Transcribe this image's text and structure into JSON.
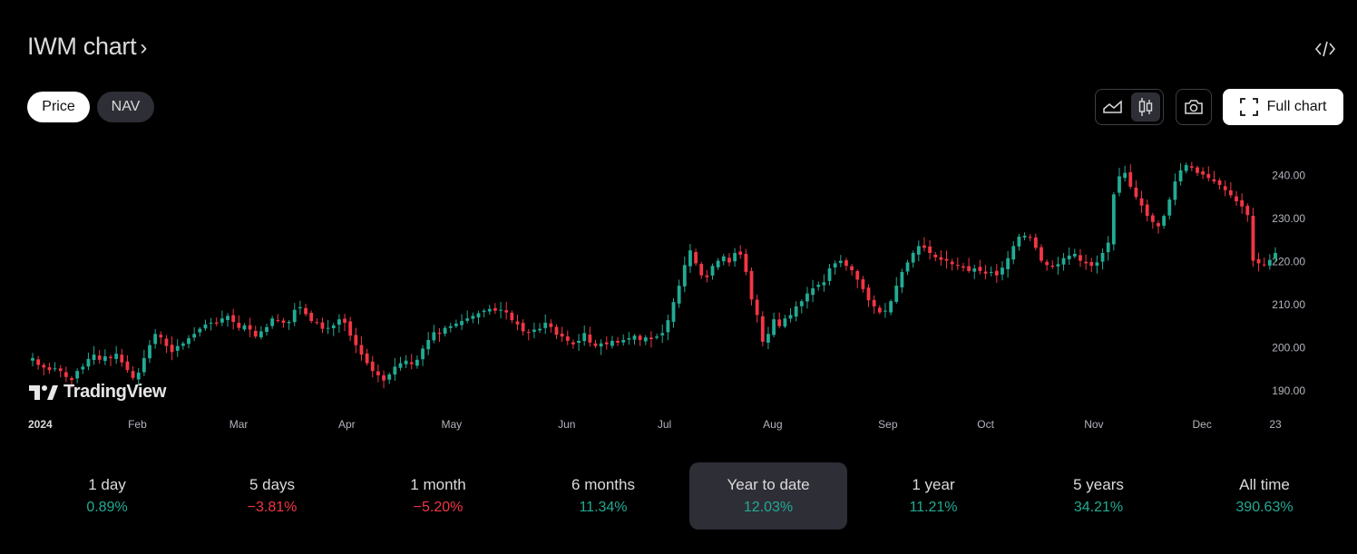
{
  "header": {
    "title": "IWM chart",
    "chevron": "›",
    "embed_icon": "code-icon"
  },
  "toggle": {
    "price_label": "Price",
    "nav_label": "NAV",
    "active": "Price"
  },
  "toolbar": {
    "area_icon": "area-chart-icon",
    "candle_icon": "candlestick-icon",
    "active_type": "candles",
    "camera_icon": "camera-icon",
    "full_chart_label": "Full chart",
    "full_chart_icon": "fullscreen-icon"
  },
  "watermark": {
    "text": "TradingView"
  },
  "colors": {
    "up": "#22ab94",
    "down": "#f23645",
    "background": "#000000",
    "axis_text": "#b2b5be"
  },
  "chart_data": {
    "type": "candlestick",
    "title": "",
    "ylim": [
      186,
      246
    ],
    "y_ticks": [
      190,
      200,
      210,
      220,
      230,
      240
    ],
    "y_tick_labels": [
      "190.00",
      "200.00",
      "210.00",
      "220.00",
      "230.00",
      "240.00"
    ],
    "x_tick_labels": [
      "2024",
      "Feb",
      "Mar",
      "Apr",
      "May",
      "Jun",
      "Jul",
      "Aug",
      "Sep",
      "Oct",
      "Nov",
      "Dec",
      "23"
    ],
    "x_tick_dates": [
      "2024-01-02",
      "2024-02-01",
      "2024-03-01",
      "2024-04-01",
      "2024-05-01",
      "2024-06-03",
      "2024-07-01",
      "2024-08-01",
      "2024-09-03",
      "2024-10-01",
      "2024-11-01",
      "2024-12-02",
      "2024-12-23"
    ],
    "date_range": [
      "2024-01-02",
      "2024-12-23"
    ],
    "series": [
      {
        "values": [
          197.6,
          196.0,
          195.4,
          194.8,
          195.2,
          194.6,
          193.2,
          192.5,
          194.6,
          195.6,
          197.4,
          198.4,
          197.2,
          198.0,
          197.6,
          198.6,
          196.6,
          194.8,
          193.0,
          194.2,
          197.6,
          200.6,
          203.2,
          202.4,
          200.4,
          199.0,
          200.4,
          201.0,
          202.2,
          203.2,
          204.4,
          205.4,
          205.8,
          205.6,
          206.8,
          207.4,
          206.0,
          204.6,
          205.2,
          204.2,
          202.6,
          203.8,
          204.8,
          206.8,
          206.4,
          205.8,
          206.0,
          208.8,
          209.4,
          207.8,
          206.2,
          205.8,
          204.4,
          204.6,
          205.2,
          206.6,
          205.8,
          202.8,
          200.6,
          198.4,
          196.4,
          194.6,
          193.6,
          192.4,
          193.8,
          195.6,
          196.4,
          197.0,
          196.2,
          197.2,
          199.8,
          201.8,
          203.6,
          203.2,
          204.6,
          205.0,
          205.6,
          206.2,
          206.8,
          207.4,
          208.0,
          208.6,
          209.0,
          208.6,
          208.8,
          208.2,
          206.4,
          205.4,
          203.8,
          203.6,
          204.2,
          204.4,
          205.8,
          204.8,
          203.0,
          202.6,
          201.6,
          200.8,
          201.6,
          203.4,
          201.2,
          200.4,
          201.0,
          200.8,
          201.6,
          201.2,
          201.8,
          202.2,
          202.8,
          201.8,
          202.4,
          202.0,
          202.6,
          203.4,
          206.4,
          210.6,
          214.4,
          219.2,
          222.6,
          219.6,
          216.8,
          216.4,
          219.0,
          220.2,
          221.2,
          219.8,
          222.0,
          221.6,
          217.6,
          211.2,
          207.6,
          201.4,
          203.2,
          206.6,
          205.0,
          206.8,
          207.6,
          209.6,
          210.8,
          212.6,
          213.8,
          214.6,
          215.2,
          218.4,
          219.6,
          220.2,
          219.0,
          218.0,
          215.8,
          213.6,
          211.0,
          209.6,
          208.2,
          208.6,
          210.8,
          214.4,
          217.6,
          219.8,
          222.0,
          223.6,
          223.2,
          222.0,
          221.0,
          220.4,
          220.2,
          219.4,
          219.0,
          218.6,
          217.8,
          218.4,
          217.8,
          217.2,
          217.6,
          216.8,
          218.6,
          220.8,
          223.6,
          225.8,
          226.0,
          225.6,
          223.2,
          220.2,
          219.2,
          218.8,
          219.4,
          220.8,
          221.4,
          221.8,
          220.2,
          219.6,
          219.0,
          219.8,
          222.0,
          224.4,
          235.6,
          239.8,
          240.6,
          237.4,
          235.0,
          233.0,
          230.6,
          229.2,
          228.2,
          230.6,
          234.4,
          238.6,
          241.2,
          242.4,
          241.8,
          240.6,
          240.2,
          239.4,
          238.6,
          237.8,
          236.6,
          235.4,
          234.0,
          232.8,
          230.8,
          220.2,
          219.6,
          219.2,
          220.4,
          222.0
        ]
      }
    ]
  },
  "performance": [
    {
      "label": "1 day",
      "value": "0.89%",
      "dir": "up"
    },
    {
      "label": "5 days",
      "value": "−3.81%",
      "dir": "down"
    },
    {
      "label": "1 month",
      "value": "−5.20%",
      "dir": "down"
    },
    {
      "label": "6 months",
      "value": "11.34%",
      "dir": "up"
    },
    {
      "label": "Year to date",
      "value": "12.03%",
      "dir": "up"
    },
    {
      "label": "1 year",
      "value": "11.21%",
      "dir": "up"
    },
    {
      "label": "5 years",
      "value": "34.21%",
      "dir": "up"
    },
    {
      "label": "All time",
      "value": "390.63%",
      "dir": "up"
    }
  ],
  "selected_period": "Year to date"
}
